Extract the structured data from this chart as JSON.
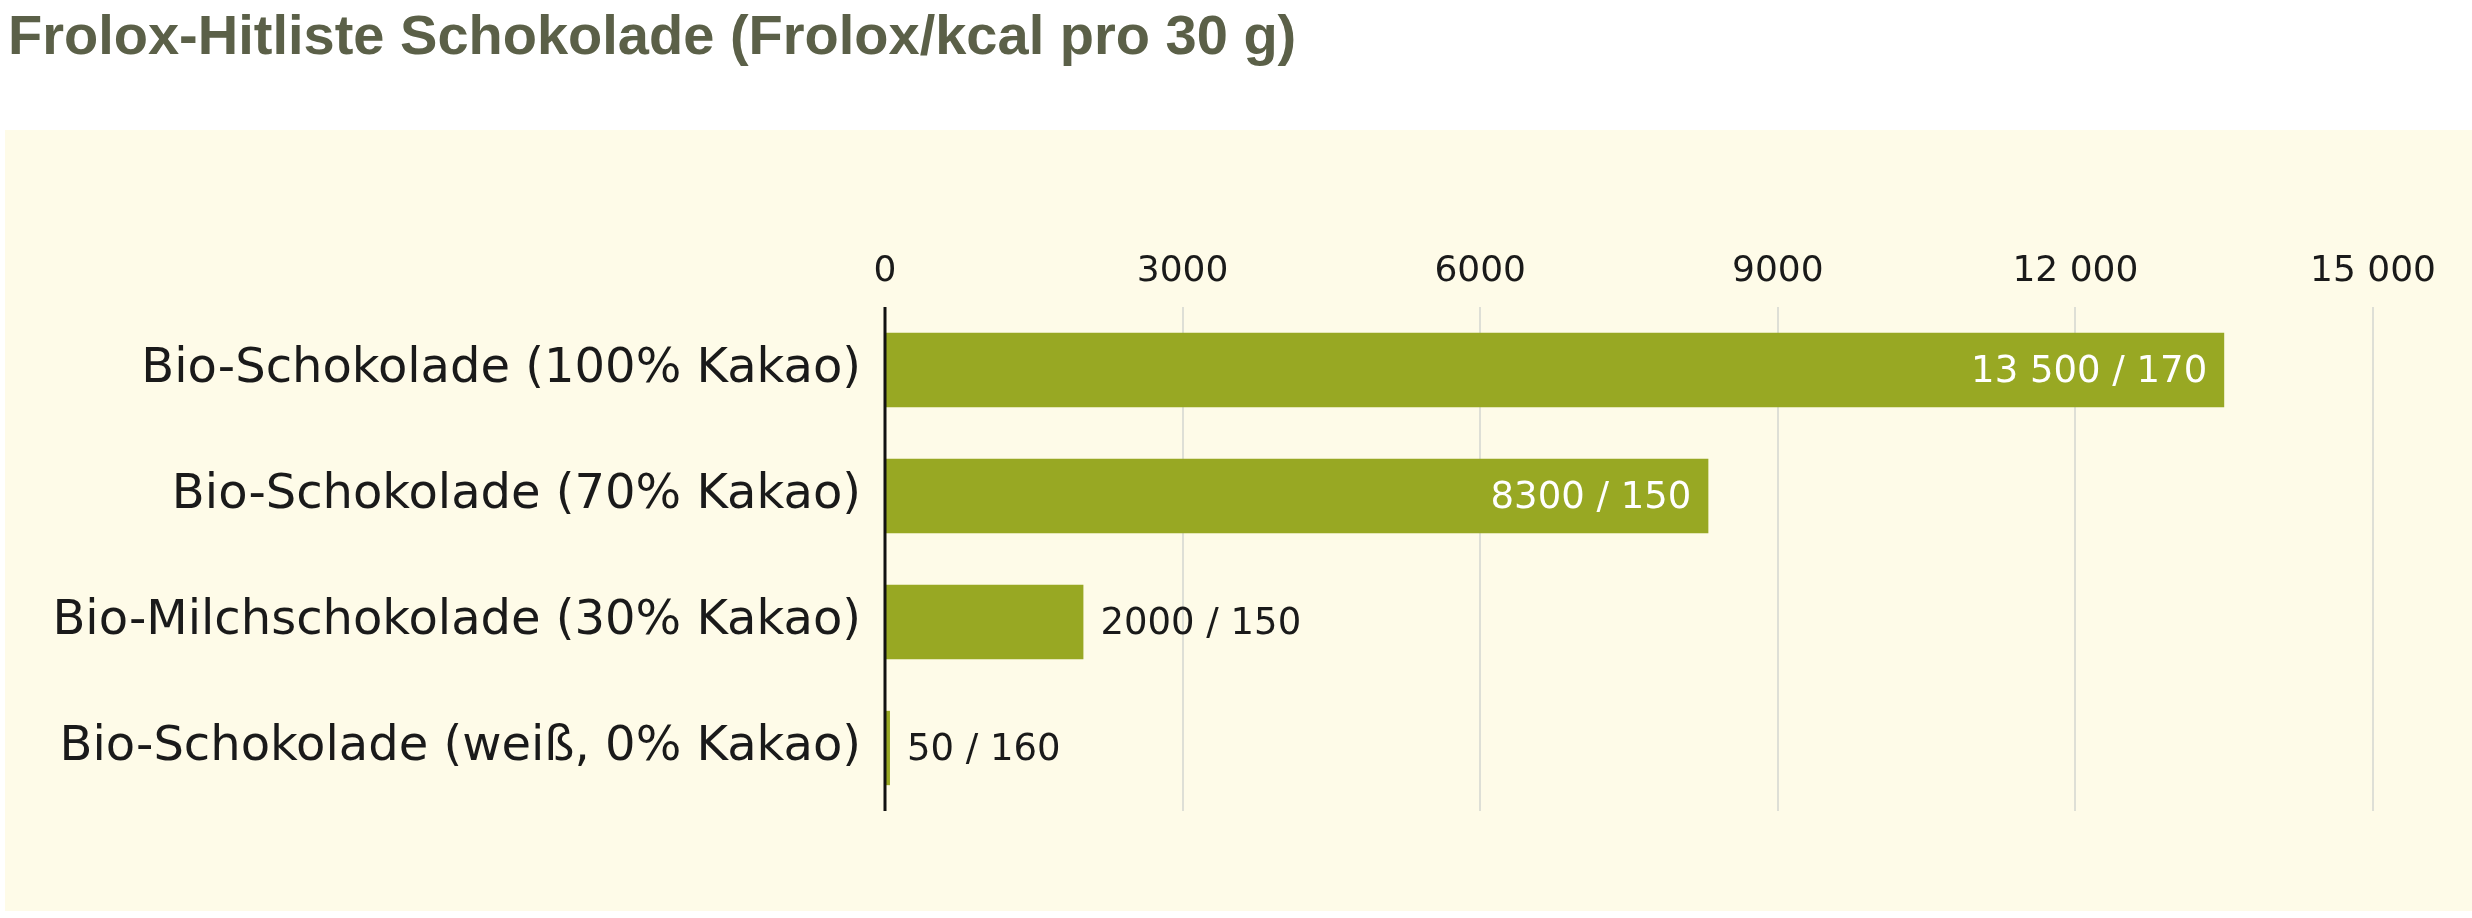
{
  "chart_data": {
    "type": "bar",
    "orientation": "horizontal",
    "title": "Frolox-Hitliste Schokolade (Frolox/kcal pro 30 g)",
    "categories": [
      "Bio-Schokolade (100% Kakao)",
      "Bio-Schokolade (70% Kakao)",
      "Bio-Milchschokolade (30% Kakao)",
      "Bio-Schokolade (weiß, 0% Kakao)"
    ],
    "values": [
      13500,
      8300,
      2000,
      50
    ],
    "value_labels": [
      "13 500 / 170",
      "8300 / 150",
      "2000 / 150",
      "50 / 160"
    ],
    "color": "#98a823",
    "xlim": [
      0,
      15000
    ],
    "xticks": [
      0,
      3000,
      6000,
      9000,
      {
        "value": 12000,
        "label": "12 000"
      },
      {
        "value": 15000,
        "label": "15 000"
      }
    ],
    "grid": "x"
  }
}
